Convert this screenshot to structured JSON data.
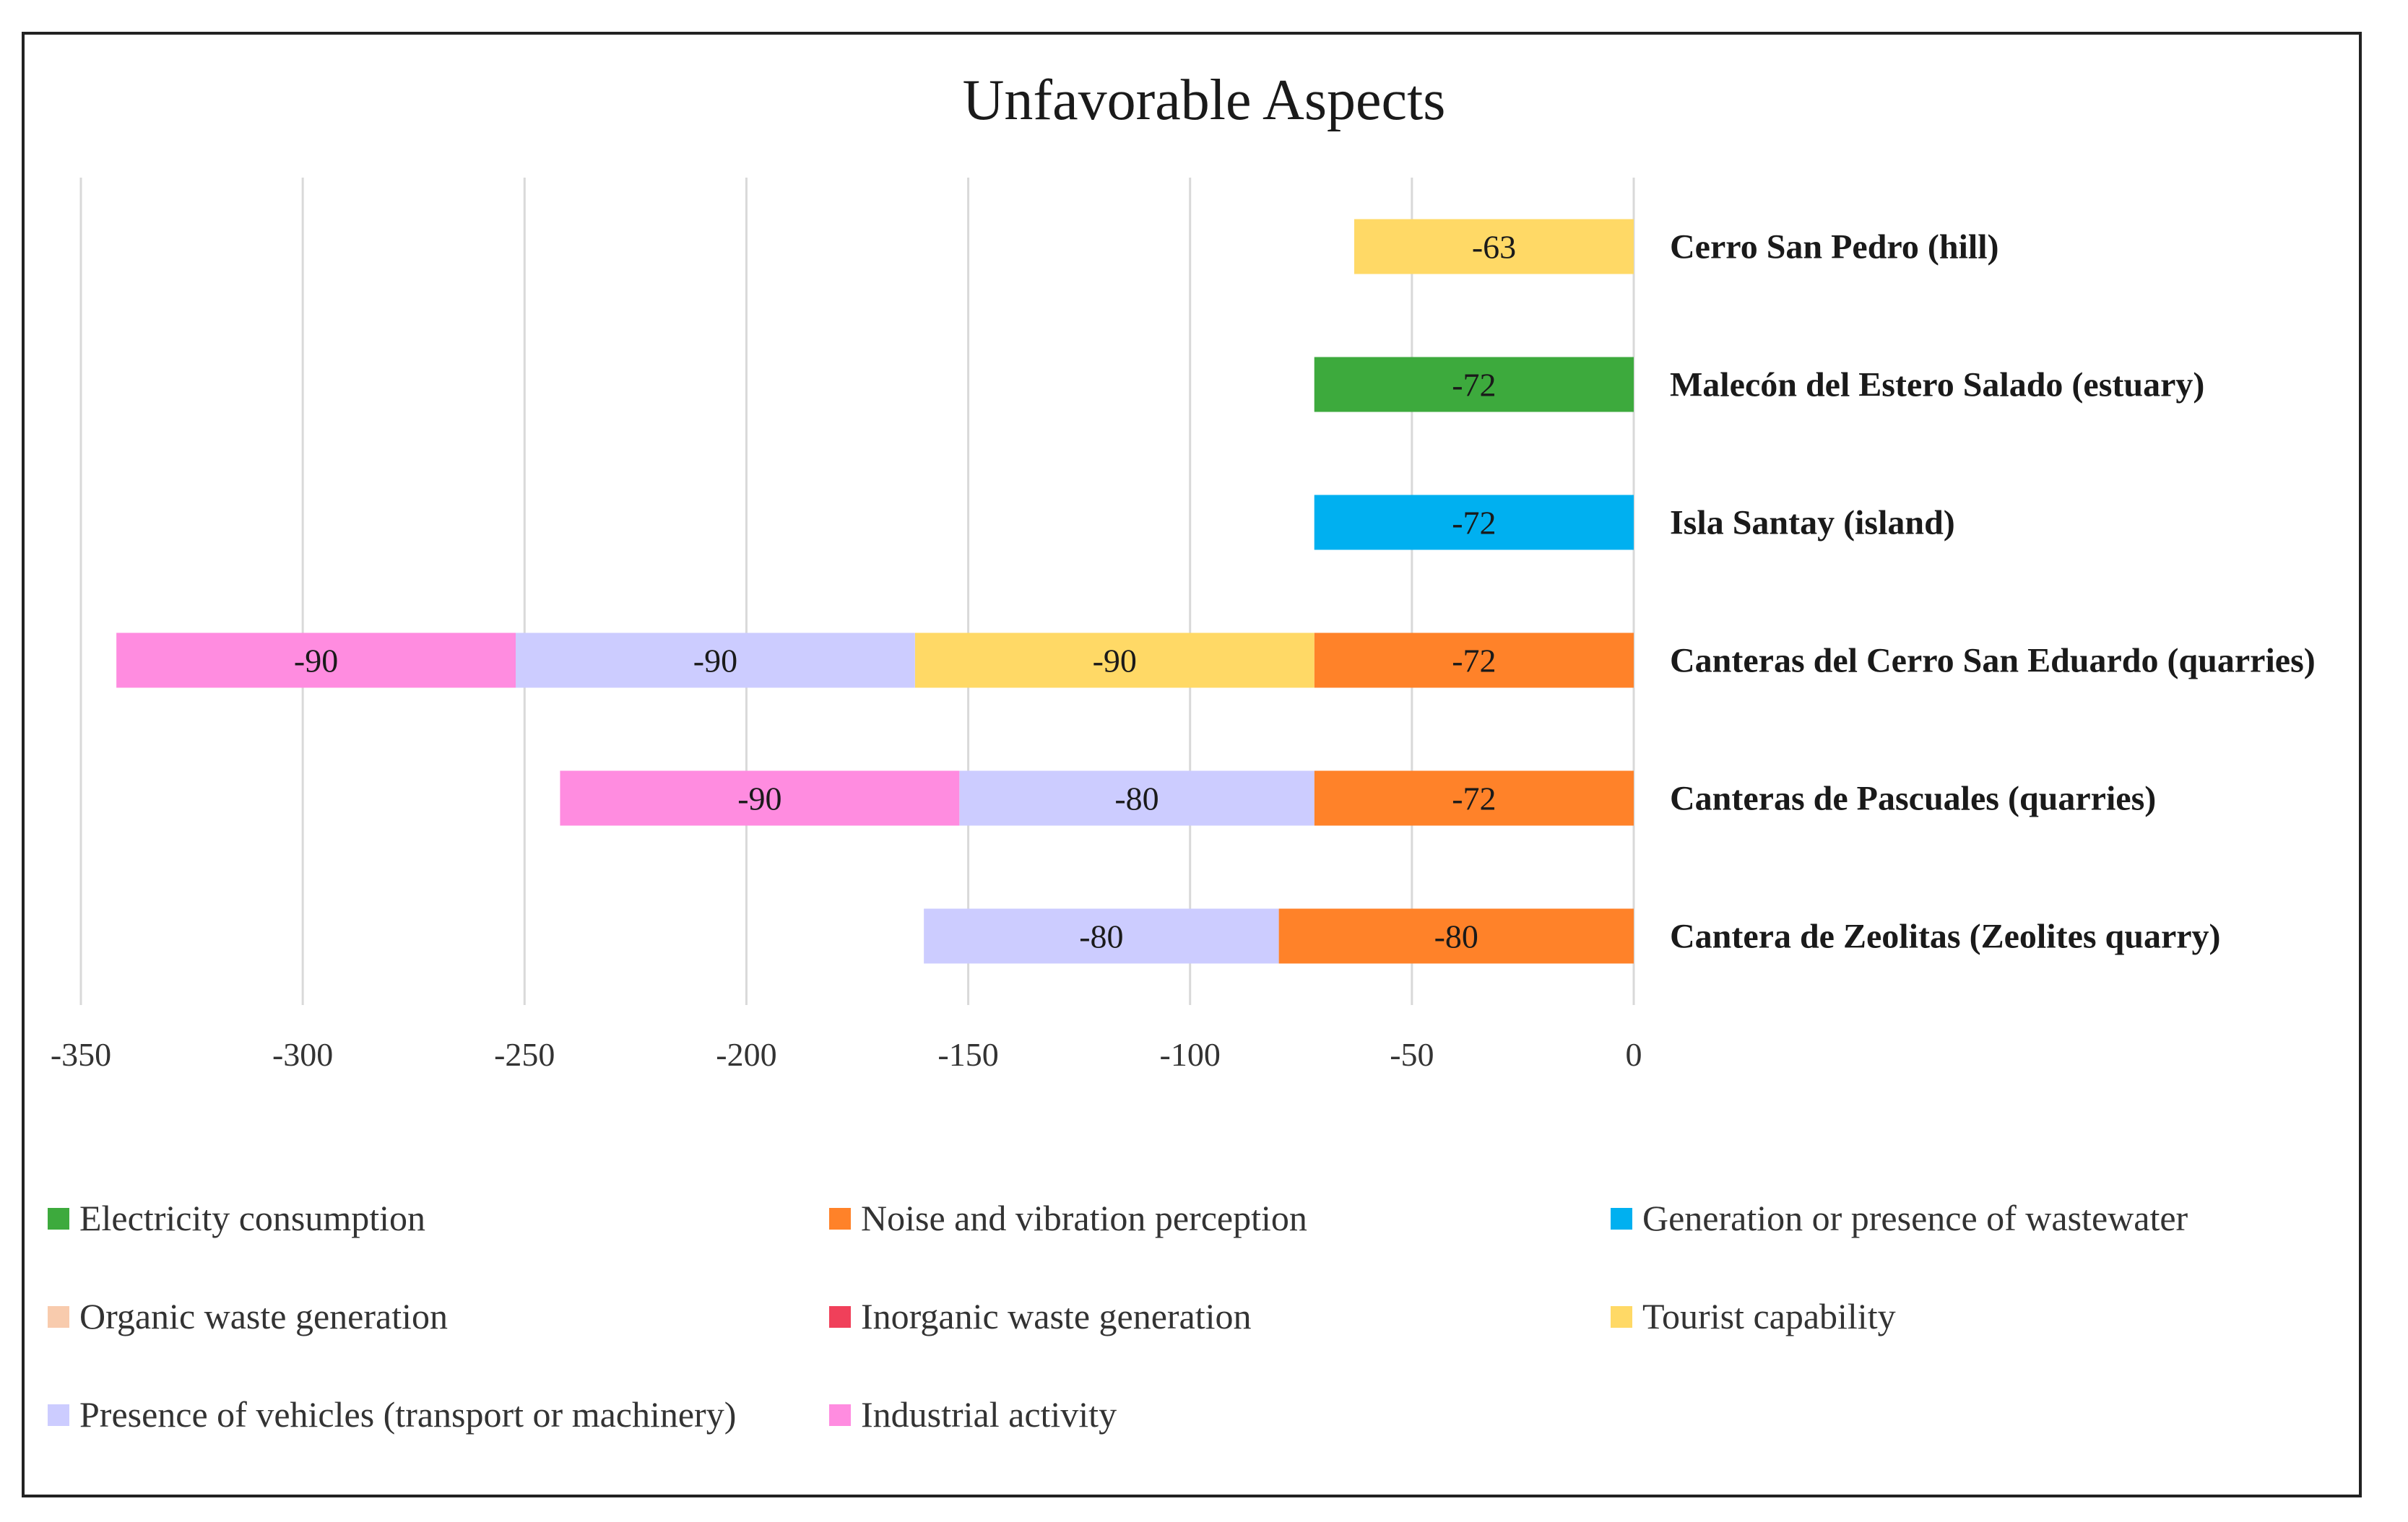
{
  "chart_data": {
    "type": "bar",
    "orientation": "horizontal",
    "stacked": true,
    "title": "Unfavorable Aspects",
    "xlabel": "",
    "ylabel": "",
    "xlim": [
      -350,
      0
    ],
    "xticks": [
      -350,
      -300,
      -250,
      -200,
      -150,
      -100,
      -50,
      0
    ],
    "grid": true,
    "legend_position": "bottom",
    "categories": [
      "Cerro San Pedro (hill)",
      "Malecón del Estero Salado (estuary)",
      "Isla Santay (island)",
      "Canteras del Cerro San Eduardo (quarries)",
      "Canteras de Pascuales (quarries)",
      "Cantera de Zeolitas (Zeolites quarry)"
    ],
    "series": [
      {
        "name": "Electricity consumption",
        "color": "#3DAA3D",
        "values": [
          0,
          -72,
          0,
          0,
          0,
          0
        ]
      },
      {
        "name": "Noise and vibration perception",
        "color": "#FF8229",
        "values": [
          0,
          0,
          0,
          -72,
          -72,
          -80
        ]
      },
      {
        "name": "Generation or presence of wastewater",
        "color": "#00B0F0",
        "values": [
          0,
          0,
          -72,
          0,
          0,
          0
        ]
      },
      {
        "name": "Organic waste generation",
        "color": "#F8CBAD",
        "values": [
          0,
          0,
          0,
          0,
          0,
          0
        ]
      },
      {
        "name": "Inorganic waste generation",
        "color": "#F0405A",
        "values": [
          0,
          0,
          0,
          0,
          0,
          0
        ]
      },
      {
        "name": "Tourist capability",
        "color": "#FFD966",
        "values": [
          -63,
          0,
          0,
          -90,
          0,
          0
        ]
      },
      {
        "name": "Presence of vehicles (transport or machinery)",
        "color": "#CCCCFF",
        "values": [
          0,
          0,
          0,
          -90,
          -80,
          -80
        ]
      },
      {
        "name": "Industrial activity",
        "color": "#FF8CE0",
        "values": [
          0,
          0,
          0,
          -90,
          -90,
          0
        ]
      }
    ]
  }
}
